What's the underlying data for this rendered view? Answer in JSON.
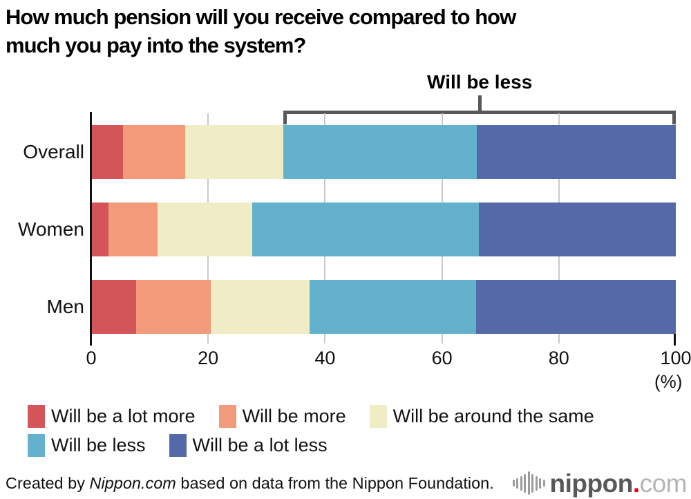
{
  "title": "How much pension will you receive compared to how much you pay into the system?",
  "chart_data": {
    "type": "bar",
    "stacked": true,
    "orientation": "horizontal",
    "title": "How much pension will you receive compared to how much you pay into the system?",
    "categories": [
      "Overall",
      "Women",
      "Men"
    ],
    "series": [
      {
        "name": "Will be a lot more",
        "color": "#d3555a",
        "values": [
          5.4,
          3.0,
          7.7
        ]
      },
      {
        "name": "Will be more",
        "color": "#f29a7a",
        "values": [
          10.7,
          8.4,
          12.7
        ]
      },
      {
        "name": "Will be around the same",
        "color": "#f0ecc5",
        "values": [
          16.8,
          16.1,
          16.9
        ]
      },
      {
        "name": "Will be less",
        "color": "#64b1ce",
        "values": [
          33.1,
          38.8,
          28.5
        ]
      },
      {
        "name": "Will be a lot less",
        "color": "#5569a8",
        "values": [
          34.0,
          33.7,
          34.2
        ]
      }
    ],
    "xlim": [
      0,
      100
    ],
    "xticks": [
      0,
      20,
      40,
      60,
      80,
      100
    ],
    "xlabel": "(%)",
    "grid": "vertical",
    "legend_position": "bottom",
    "annotation": {
      "label": "Will be less",
      "span_pct": [
        32.9,
        100
      ]
    }
  },
  "footer": {
    "credit_prefix": "Created by ",
    "credit_source": "Nippon.com",
    "credit_suffix": " based on data from the Nippon Foundation.",
    "logo": {
      "wordmark": "nippon",
      "dot": ".",
      "tld": "com",
      "dot_color": "#e60012"
    }
  }
}
